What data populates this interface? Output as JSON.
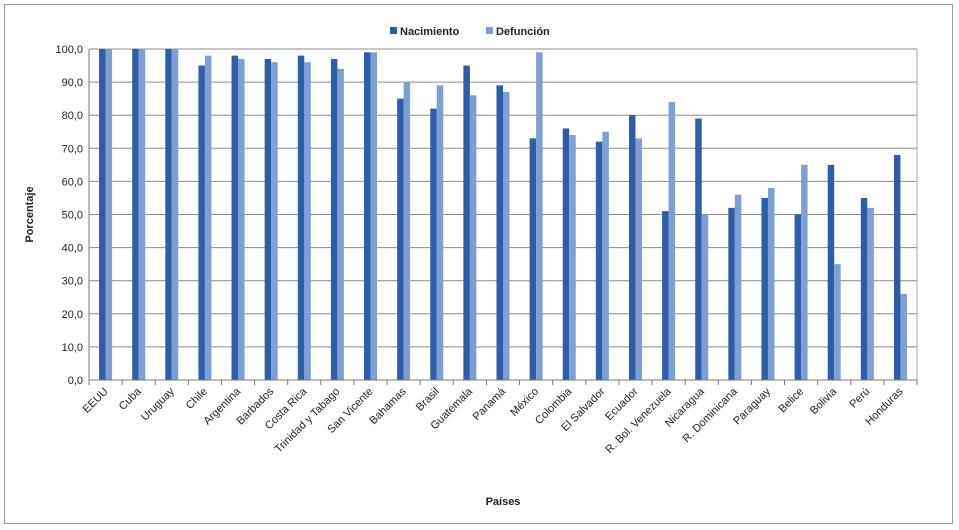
{
  "chart_data": {
    "type": "bar",
    "xlabel": "Países",
    "ylabel": "Porcentaje",
    "ylim": [
      0,
      100
    ],
    "yticks": [
      "0,0",
      "10,0",
      "20,0",
      "30,0",
      "40,0",
      "50,0",
      "60,0",
      "70,0",
      "80,0",
      "90,0",
      "100,0"
    ],
    "grid": true,
    "legend_position": "top-center",
    "categories": [
      "EEUU",
      "Cuba",
      "Uruguay",
      "Chile",
      "Argentina",
      "Barbados",
      "Costa Rica",
      "Trinidad y Tabago",
      "San Vicente",
      "Bahamas",
      "Brasil",
      "Guatemala",
      "Panamá",
      "México",
      "Colombia",
      "El Salvador",
      "Ecuador",
      "R. Bol. Venezuela",
      "Nicaragua",
      "R. Dominicana",
      "Paraguay",
      "Belice",
      "Bolivia",
      "Perú",
      "Honduras"
    ],
    "series": [
      {
        "name": "Nacimiento",
        "color": "#2f5da8",
        "values": [
          100,
          100,
          100,
          95,
          98,
          97,
          98,
          97,
          99,
          85,
          82,
          95,
          89,
          73,
          76,
          72,
          80,
          51,
          79,
          52,
          55,
          50,
          65,
          55,
          68
        ]
      },
      {
        "name": "Defunción",
        "color": "#7d9fd6",
        "values": [
          100,
          100,
          100,
          98,
          97,
          96,
          96,
          94,
          99,
          90,
          89,
          86,
          87,
          99,
          74,
          75,
          73,
          84,
          50,
          56,
          58,
          65,
          35,
          52,
          26
        ]
      }
    ]
  }
}
